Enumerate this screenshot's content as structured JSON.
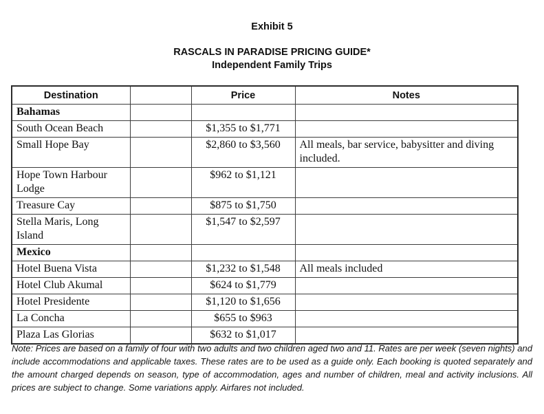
{
  "page": {
    "exhibit_label": "Exhibit 5",
    "title_line1": "RASCALS IN PARADISE PRICING GUIDE*",
    "title_line2": "Independent Family Trips"
  },
  "table": {
    "columns": [
      "Destination",
      "",
      "Price",
      "Notes"
    ],
    "rows": [
      {
        "type": "section",
        "destination": "Bahamas",
        "price": "",
        "notes": ""
      },
      {
        "type": "item",
        "destination": "South Ocean Beach",
        "price": "$1,355 to $1,771",
        "notes": ""
      },
      {
        "type": "item",
        "destination": "Small Hope Bay",
        "price": "$2,860 to $3,560",
        "notes": "All meals, bar service, babysitter and diving included."
      },
      {
        "type": "item",
        "destination": "Hope Town Harbour Lodge",
        "price": "$962 to $1,121",
        "notes": ""
      },
      {
        "type": "item",
        "destination": "Treasure Cay",
        "price": "$875 to $1,750",
        "notes": ""
      },
      {
        "type": "item",
        "destination": "Stella Maris, Long Island",
        "price": "$1,547 to $2,597",
        "notes": ""
      },
      {
        "type": "section",
        "destination": "Mexico",
        "price": "",
        "notes": ""
      },
      {
        "type": "item",
        "destination": "Hotel Buena Vista",
        "price": "$1,232 to $1,548",
        "notes": "All meals included"
      },
      {
        "type": "item",
        "destination": "Hotel Club Akumal",
        "price": "$624 to $1,779",
        "notes": ""
      },
      {
        "type": "item",
        "destination": "Hotel Presidente",
        "price": "$1,120 to $1,656",
        "notes": ""
      },
      {
        "type": "item",
        "destination": "La Concha",
        "price": "$655 to $963",
        "notes": ""
      },
      {
        "type": "item",
        "destination": "Plaza Las Glorias",
        "price": "$632 to $1,017",
        "notes": ""
      }
    ]
  },
  "footnote": "Note: Prices are based on a family of four with two adults and two children aged two and 11. Rates are per week (seven nights) and include accommodations and applicable taxes. These rates are to be used as a guide only. Each booking is quoted separately and the amount charged depends on season, type of accommodation, ages and number of children, meal and activity inclusions. All prices are subject to change. Some variations apply. Airfares not included."
}
